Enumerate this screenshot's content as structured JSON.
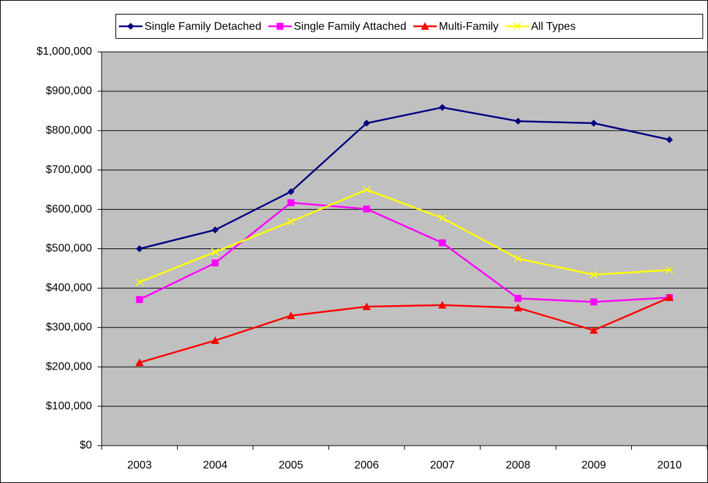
{
  "chart_data": {
    "type": "line",
    "categories": [
      "2003",
      "2004",
      "2005",
      "2006",
      "2007",
      "2008",
      "2009",
      "2010"
    ],
    "series": [
      {
        "name": "Single Family Detached",
        "color": "#000080",
        "marker": "diamond",
        "values": [
          500000,
          548000,
          645000,
          819000,
          859000,
          824000,
          819000,
          777000
        ]
      },
      {
        "name": "Single Family Attached",
        "color": "#ff00ff",
        "marker": "square",
        "values": [
          371000,
          464000,
          617000,
          601000,
          515000,
          374000,
          365000,
          376000
        ]
      },
      {
        "name": "Multi-Family",
        "color": "#ff0000",
        "marker": "triangle",
        "values": [
          211000,
          267000,
          330000,
          353000,
          357000,
          350000,
          293000,
          376000
        ]
      },
      {
        "name": "All Types",
        "color": "#ffff00",
        "marker": "x",
        "values": [
          415000,
          492000,
          569000,
          650000,
          578000,
          475000,
          434000,
          446000
        ]
      }
    ],
    "ylim": [
      0,
      1000000
    ],
    "yticks": [
      {
        "value": 0,
        "label": "$0"
      },
      {
        "value": 100000,
        "label": "$100,000"
      },
      {
        "value": 200000,
        "label": "$200,000"
      },
      {
        "value": 300000,
        "label": "$300,000"
      },
      {
        "value": 400000,
        "label": "$400,000"
      },
      {
        "value": 500000,
        "label": "$500,000"
      },
      {
        "value": 600000,
        "label": "$600,000"
      },
      {
        "value": 700000,
        "label": "$700,000"
      },
      {
        "value": 800000,
        "label": "$800,000"
      },
      {
        "value": 900000,
        "label": "$900,000"
      },
      {
        "value": 1000000,
        "label": "$1,000,000"
      }
    ],
    "grid": true,
    "legend": "top",
    "plot_background": "#c0c0c0"
  }
}
